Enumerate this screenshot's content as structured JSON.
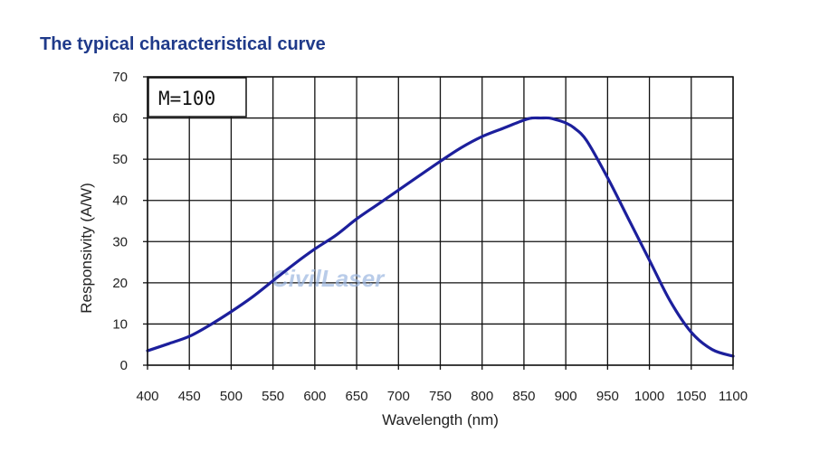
{
  "page": {
    "title": "The typical characteristical curve"
  },
  "colors": {
    "title": "#1f3a8a",
    "curve": "#1c1f9c",
    "grid": "#111111",
    "watermark": "#9bb6df"
  },
  "chart_data": {
    "type": "line",
    "title": "The typical characteristical curve",
    "xlabel": "Wavelength (nm)",
    "ylabel": "Responsivity (A/W)",
    "xlim": [
      400,
      1100
    ],
    "ylim": [
      0,
      70
    ],
    "xticks": [
      400,
      450,
      500,
      550,
      600,
      650,
      700,
      750,
      800,
      850,
      900,
      950,
      1000,
      1050,
      1100
    ],
    "yticks": [
      0,
      10,
      20,
      30,
      40,
      50,
      60,
      70
    ],
    "grid": true,
    "annotation": "M=100",
    "watermark": "CivilLaser",
    "series": [
      {
        "name": "M=100",
        "x": [
          400,
          425,
          450,
          475,
          500,
          525,
          550,
          575,
          600,
          625,
          650,
          675,
          700,
          725,
          750,
          775,
          800,
          825,
          850,
          860,
          870,
          880,
          890,
          900,
          910,
          925,
          950,
          975,
          1000,
          1025,
          1050,
          1075,
          1100
        ],
        "y": [
          3.5,
          5.2,
          7.0,
          9.8,
          13.0,
          16.5,
          20.5,
          24.5,
          28.2,
          31.5,
          35.5,
          39.0,
          42.5,
          46.0,
          49.5,
          52.8,
          55.5,
          57.5,
          59.5,
          60.0,
          60.0,
          60.0,
          59.5,
          58.8,
          57.6,
          54.5,
          45.5,
          35.5,
          25.5,
          15.5,
          8.0,
          3.8,
          2.2
        ]
      }
    ]
  }
}
